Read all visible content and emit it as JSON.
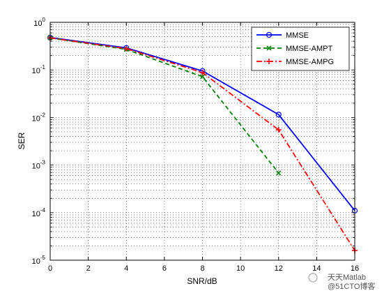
{
  "chart_data": {
    "type": "line",
    "xlabel": "SNR/dB",
    "ylabel": "SER",
    "xlim": [
      0,
      16
    ],
    "ylim": [
      1e-05,
      1
    ],
    "yscale": "log",
    "grid": true,
    "legend_position": "top-right",
    "x_ticks": [
      "0",
      "2",
      "4",
      "6",
      "8",
      "10",
      "12",
      "14",
      "16"
    ],
    "y_ticks": [
      {
        "base": "10",
        "exp": "0",
        "value": 1
      },
      {
        "base": "10",
        "exp": "-1",
        "value": 0.1
      },
      {
        "base": "10",
        "exp": "-2",
        "value": 0.01
      },
      {
        "base": "10",
        "exp": "-3",
        "value": 0.001
      },
      {
        "base": "10",
        "exp": "-4",
        "value": 0.0001
      },
      {
        "base": "10",
        "exp": "-5",
        "value": 1e-05
      }
    ],
    "series": [
      {
        "name": "MMSE",
        "color": "#0000ff",
        "style": "solid",
        "marker": "circle",
        "x": [
          0,
          4,
          8,
          12,
          16
        ],
        "y": [
          0.48,
          0.29,
          0.095,
          0.0115,
          0.00011
        ]
      },
      {
        "name": "MMSE-AMPT",
        "color": "#008000",
        "style": "dashed",
        "marker": "x",
        "x": [
          0,
          4,
          8,
          12
        ],
        "y": [
          0.47,
          0.27,
          0.072,
          0.00068
        ]
      },
      {
        "name": "MMSE-AMPG",
        "color": "#ff0000",
        "style": "dashdot",
        "marker": "plus",
        "x": [
          0,
          4,
          8,
          12,
          16
        ],
        "y": [
          0.47,
          0.28,
          0.088,
          0.0055,
          1.6e-05
        ]
      }
    ]
  },
  "watermark": {
    "text": "天天Matlab",
    "sub": "@51CTO博客"
  }
}
